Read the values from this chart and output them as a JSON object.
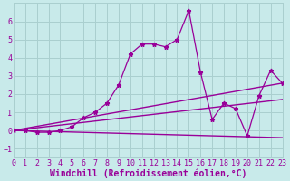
{
  "xlabel": "Windchill (Refroidissement éolien,°C)",
  "bg_color": "#c8eaea",
  "grid_color": "#aacfcf",
  "line_color": "#990099",
  "xlim": [
    0,
    23
  ],
  "ylim": [
    -1.5,
    7
  ],
  "xticks": [
    0,
    1,
    2,
    3,
    4,
    5,
    6,
    7,
    8,
    9,
    10,
    11,
    12,
    13,
    14,
    15,
    16,
    17,
    18,
    19,
    20,
    21,
    22,
    23
  ],
  "yticks": [
    -1,
    0,
    1,
    2,
    3,
    4,
    5,
    6
  ],
  "curve1_x": [
    0,
    1,
    2,
    3,
    4,
    5,
    6,
    7,
    8,
    9,
    10,
    11,
    12,
    13,
    14,
    15,
    16,
    17,
    18,
    19,
    20,
    21,
    22,
    23
  ],
  "curve1_y": [
    0.0,
    0.0,
    -0.1,
    -0.1,
    0.0,
    0.2,
    0.7,
    1.0,
    1.5,
    2.5,
    4.2,
    4.75,
    4.75,
    4.6,
    5.0,
    6.6,
    3.2,
    0.6,
    1.5,
    1.2,
    -0.3,
    1.9,
    3.3,
    2.6
  ],
  "line_upper_start": 0.0,
  "line_upper_end": 2.6,
  "line_mid_start": 0.0,
  "line_mid_end": 1.7,
  "line_lower_start": 0.0,
  "line_lower_end": -0.4,
  "font_size_label": 7,
  "font_size_tick": 6
}
